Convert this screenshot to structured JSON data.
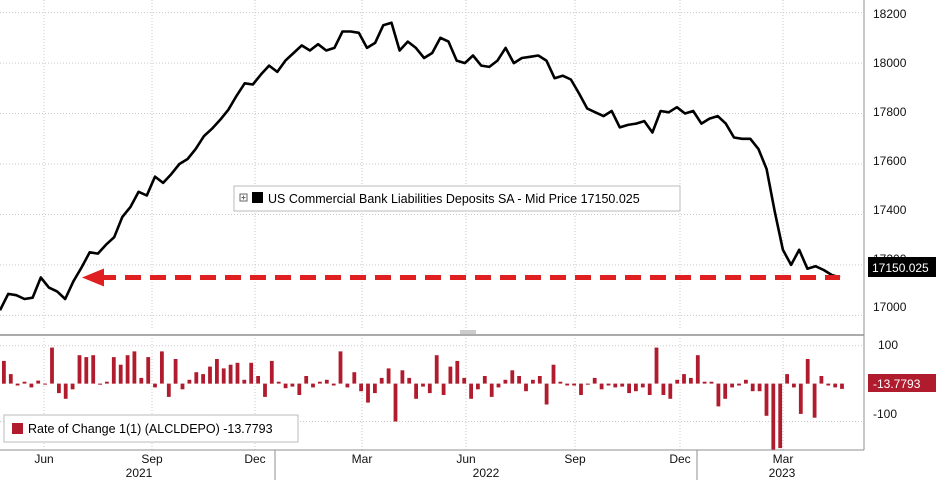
{
  "chart_data": [
    {
      "type": "line",
      "legend": "US Commercial Bank Liabilities Deposits SA - Mid Price 17150.025",
      "last_value_label": "17150.025",
      "ylim": [
        16950,
        18250
      ],
      "y_ticks": [
        17000,
        17200,
        17400,
        17600,
        17800,
        18000,
        18200
      ],
      "y_tick_labels": [
        "17000",
        "17200",
        "17400",
        "17600",
        "17800",
        "18000",
        "18200"
      ],
      "grid": true,
      "x": [
        0,
        1,
        2,
        3,
        4,
        5,
        6,
        7,
        8,
        9,
        10,
        11,
        12,
        13,
        14,
        15,
        16,
        17,
        18,
        19,
        20,
        21,
        22,
        23,
        24,
        25,
        26,
        27,
        28,
        29,
        30,
        31,
        32,
        33,
        34,
        35,
        36,
        37,
        38,
        39,
        40,
        41,
        42,
        43,
        44,
        45,
        46,
        47,
        48,
        49,
        50,
        51,
        52,
        53,
        54,
        55,
        56,
        57,
        58,
        59,
        60,
        61,
        62,
        63,
        64,
        65,
        66,
        67,
        68,
        69,
        70,
        71,
        72,
        73,
        74,
        75,
        76,
        77,
        78,
        79,
        80,
        81,
        82,
        83,
        84,
        85,
        86,
        87,
        88,
        89,
        90,
        91,
        92,
        93,
        94,
        95,
        96,
        97,
        98,
        99,
        100,
        101,
        102,
        103
      ],
      "values": [
        17020,
        17085,
        17080,
        17065,
        17070,
        17150,
        17110,
        17095,
        17065,
        17135,
        17190,
        17250,
        17245,
        17280,
        17310,
        17390,
        17430,
        17490,
        17475,
        17550,
        17525,
        17560,
        17600,
        17620,
        17660,
        17710,
        17740,
        17775,
        17815,
        17870,
        17920,
        17915,
        17955,
        17990,
        17965,
        18010,
        18040,
        18070,
        18050,
        18075,
        18050,
        18060,
        18125,
        18125,
        18120,
        18060,
        18080,
        18150,
        18160,
        18050,
        18085,
        18060,
        18020,
        18040,
        18100,
        18085,
        18010,
        18000,
        18030,
        17990,
        17985,
        18010,
        18060,
        18000,
        18020,
        18025,
        18030,
        18010,
        17940,
        17950,
        17935,
        17880,
        17820,
        17805,
        17790,
        17810,
        17745,
        17755,
        17760,
        17770,
        17725,
        17810,
        17805,
        17825,
        17800,
        17810,
        17760,
        17780,
        17790,
        17760,
        17705,
        17700,
        17700,
        17660,
        17580,
        17410,
        17260,
        17200,
        17260,
        17185,
        17195,
        17180,
        17160,
        17150
      ],
      "reference_arrow": {
        "value": 17150,
        "color": "#e02020"
      },
      "line_color": "#000000"
    },
    {
      "type": "bar",
      "legend": "Rate of Change 1(1) (ALCLDEPO) -13.7793",
      "last_value_label": "-13.7793",
      "ylim": [
        -175,
        115
      ],
      "y_ticks": [
        100,
        -100
      ],
      "y_tick_labels": [
        "100",
        "-100"
      ],
      "bar_color": "#b01c2e",
      "values": [
        60,
        25,
        -5,
        5,
        -10,
        8,
        -2,
        95,
        -25,
        -40,
        -15,
        75,
        70,
        75,
        -3,
        5,
        70,
        50,
        75,
        85,
        15,
        70,
        -10,
        85,
        -35,
        65,
        -15,
        10,
        30,
        25,
        45,
        65,
        40,
        50,
        55,
        10,
        55,
        20,
        -35,
        60,
        5,
        -12,
        -8,
        -30,
        20,
        -10,
        5,
        10,
        -5,
        85,
        -10,
        30,
        -20,
        -50,
        -25,
        15,
        40,
        -100,
        35,
        15,
        -40,
        -8,
        -25,
        75,
        -30,
        45,
        60,
        15,
        -40,
        -15,
        20,
        -35,
        -10,
        10,
        35,
        20,
        -20,
        10,
        20,
        -55,
        50,
        5,
        -5,
        -5,
        -30,
        -3,
        15,
        -15,
        -5,
        -10,
        -8,
        -25,
        -20,
        -10,
        -30,
        95,
        -30,
        -40,
        10,
        25,
        15,
        75,
        5,
        5,
        -60,
        -40,
        -10,
        -5,
        10,
        -20,
        -20,
        -85,
        -175,
        -170,
        25,
        -10,
        -80,
        65,
        -90,
        20,
        -5,
        -10,
        -14
      ]
    }
  ],
  "x_axis": {
    "month_labels": [
      "Jun",
      "Sep",
      "Dec",
      "Mar",
      "Jun",
      "Sep",
      "Dec",
      "Mar"
    ],
    "year_labels": [
      "2021",
      "2022",
      "2023"
    ]
  },
  "colors": {
    "tag_bg": "#000000",
    "tag_bg_bar": "#b01c2e",
    "grid": "#c9c9c9",
    "separator": "#8f8f8f"
  }
}
